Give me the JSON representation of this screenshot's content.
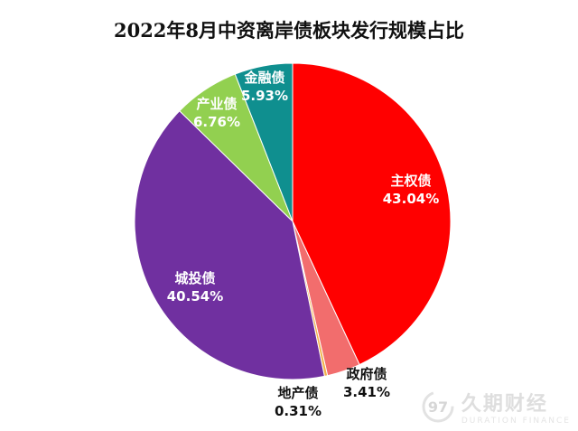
{
  "chart_data": {
    "type": "pie",
    "title": "2022年8月中资离岸债板块发行规模占比",
    "slices": [
      {
        "name": "主权债",
        "value": 43.04,
        "label": "43.04%",
        "color": "#ff0000",
        "label_color": "#ffffff"
      },
      {
        "name": "政府债",
        "value": 3.41,
        "label": "3.41%",
        "color": "#f26d6d",
        "label_color": "#111111"
      },
      {
        "name": "地产债",
        "value": 0.31,
        "label": "0.31%",
        "color": "#f2b24a",
        "label_color": "#111111"
      },
      {
        "name": "城投债",
        "value": 40.54,
        "label": "40.54%",
        "color": "#7030a0",
        "label_color": "#ffffff"
      },
      {
        "name": "产业债",
        "value": 6.76,
        "label": "6.76%",
        "color": "#92d050",
        "label_color": "#ffffff"
      },
      {
        "name": "金融债",
        "value": 5.93,
        "label": "5.93%",
        "color": "#0f8f8f",
        "label_color": "#ffffff"
      }
    ]
  },
  "watermark": {
    "cn": "久期财经",
    "en": "DURATION FINANCE",
    "logo": "97-logo-icon"
  }
}
